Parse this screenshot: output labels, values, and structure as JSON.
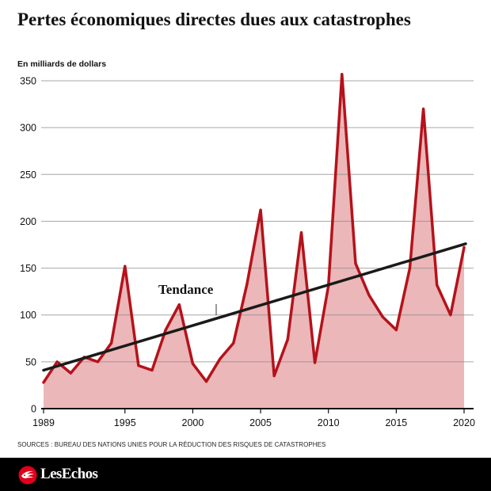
{
  "chart_data": {
    "type": "area",
    "title": "Pertes économiques directes dues aux catastrophes",
    "ylabel": "En milliards de dollars",
    "x": [
      1989,
      1990,
      1991,
      1992,
      1993,
      1994,
      1995,
      1996,
      1997,
      1998,
      1999,
      2000,
      2001,
      2002,
      2003,
      2004,
      2005,
      2006,
      2007,
      2008,
      2009,
      2010,
      2011,
      2012,
      2013,
      2014,
      2015,
      2016,
      2017,
      2018,
      2019,
      2020
    ],
    "values": [
      28,
      50,
      38,
      55,
      50,
      70,
      152,
      46,
      41,
      84,
      111,
      48,
      29,
      53,
      70,
      133,
      212,
      35,
      74,
      188,
      49,
      131,
      357,
      155,
      121,
      98,
      84,
      150,
      320,
      132,
      100,
      172
    ],
    "xticks": [
      1989,
      1995,
      2000,
      2005,
      2010,
      2015,
      2020
    ],
    "yticks": [
      0,
      50,
      100,
      150,
      200,
      250,
      300,
      350
    ],
    "xlim": [
      1989,
      2020
    ],
    "ylim": [
      0,
      350
    ],
    "grid": true,
    "trend": {
      "label": "Tendance",
      "x": [
        1989,
        2020
      ],
      "y": [
        41,
        176
      ]
    },
    "colors": {
      "line": "#b5121b",
      "fill": "#ebb7b9",
      "trend": "#1a1a1a",
      "grid": "#8a8a8a",
      "axis": "#111111"
    }
  },
  "source": "SOURCES : BUREAU DES NATIONS UNIES POUR LA RÉDUCTION DES RISQUES DE CATASTROPHES",
  "footer": {
    "logo_text": "LesEchos",
    "logo_icon": "les-echos-logo-icon",
    "background": "#000000",
    "logo_color": "#e2001a"
  }
}
